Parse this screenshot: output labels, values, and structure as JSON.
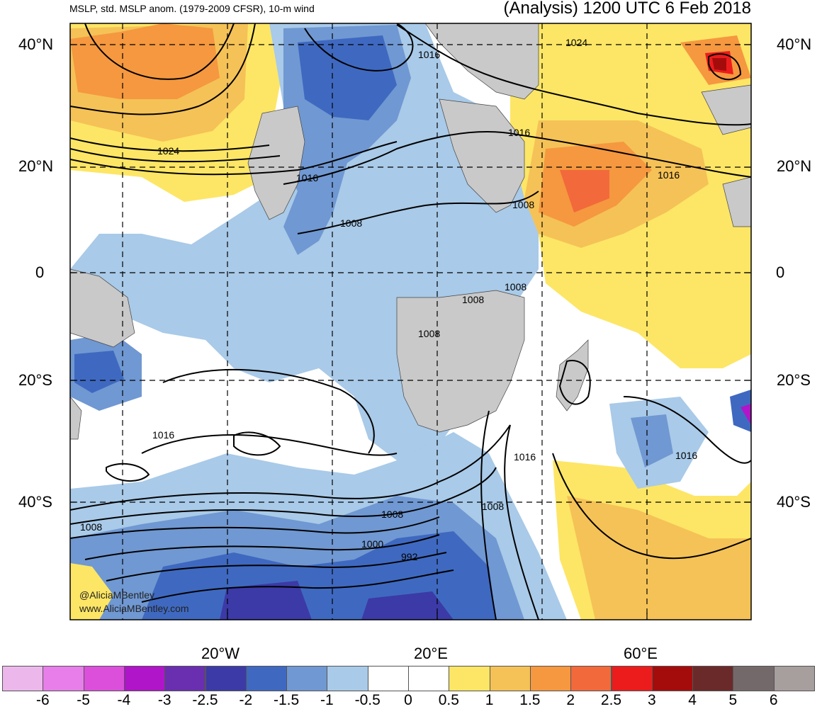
{
  "header": {
    "left_title": "MSLP, std. MSLP anom. (1979-2009 CFSR), 10-m wind",
    "right_title": "(Analysis) 1200 UTC 6 Feb 2018"
  },
  "lat_labels": [
    "40°N",
    "20°N",
    "0",
    "20°S",
    "40°S"
  ],
  "lon_labels": [
    "20°W",
    "20°E",
    "60°E"
  ],
  "credits": [
    "@AliciaMBentley",
    "www.AliciaMBentley.com"
  ],
  "isobar_labels": [
    "1016",
    "1024",
    "1016",
    "1024",
    "1016",
    "1016",
    "1008",
    "1008",
    "1008",
    "1008",
    "1008",
    "1016",
    "1016",
    "1016",
    "1008",
    "1008",
    "1000",
    "992",
    "1008"
  ],
  "colorbar": {
    "labels": [
      "-6",
      "-5",
      "-4",
      "-3",
      "-2.5",
      "-2",
      "-1.5",
      "-1",
      "-0.5",
      "0",
      "0.5",
      "1",
      "1.5",
      "2",
      "2.5",
      "3",
      "4",
      "5",
      "6"
    ],
    "colors": [
      "#ecb8ec",
      "#e77ee9",
      "#db4fdb",
      "#b015c9",
      "#6a2fb0",
      "#3c3aa6",
      "#3f69c0",
      "#7098d2",
      "#a9cae8",
      "#ffffff",
      "#ffffff",
      "#fde665",
      "#f5c257",
      "#f5983f",
      "#f2693b",
      "#ec1c1c",
      "#a40c0c",
      "#6b2a2a",
      "#74696a",
      "#a79e9e"
    ]
  }
}
